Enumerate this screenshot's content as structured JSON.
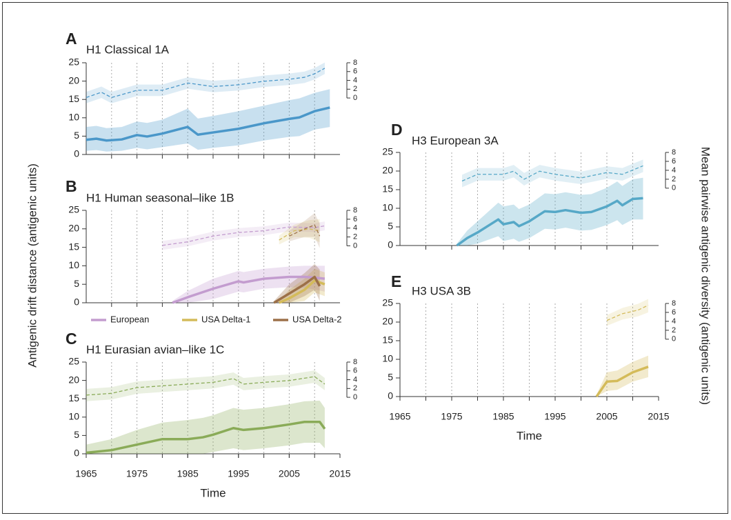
{
  "y_label": "Antigenic drift distance (antigenic units)",
  "y2_label": "Mean pairwise antigenic diversity (antigenic units)",
  "chart_data": [
    {
      "type": "line",
      "panel": "A",
      "title": "H1 Classical 1A",
      "xlim": [
        1965,
        2015
      ],
      "xgrid": [
        1970,
        1975,
        1980,
        1985,
        1990,
        1995,
        2000,
        2005,
        2010
      ],
      "ylim": [
        0,
        25
      ],
      "yticks": [
        0,
        5,
        10,
        15,
        20,
        25
      ],
      "y2lim": [
        0,
        8
      ],
      "y2ticks": [
        0,
        2,
        4,
        6,
        8
      ],
      "series": [
        {
          "color": "#4a97c9",
          "x": [
            1965,
            1967,
            1969,
            1972,
            1975,
            1977,
            1980,
            1985,
            1987,
            1990,
            1995,
            2000,
            2005,
            2007,
            2010,
            2013
          ],
          "values": [
            4,
            4.3,
            3.8,
            4.1,
            5.3,
            4.9,
            5.7,
            7.5,
            5.4,
            6,
            7,
            8.5,
            9.7,
            10.1,
            11.8,
            12.8
          ],
          "lower": [
            1,
            1.2,
            0.8,
            1,
            1.8,
            1.4,
            2,
            3,
            1.3,
            1.8,
            2.5,
            3.8,
            4.8,
            5,
            6.8,
            7.5
          ],
          "upper": [
            7.5,
            7.8,
            7.2,
            7.5,
            9,
            8.6,
            9.5,
            12.5,
            9.8,
            10.5,
            11.8,
            13.3,
            14.8,
            15.3,
            16.8,
            17.8
          ]
        },
        {
          "color": "#4a97c9",
          "axis": "y2",
          "x": [
            1965,
            1968,
            1970,
            1975,
            1980,
            1985,
            1990,
            1995,
            2000,
            2005,
            2008,
            2010,
            2012
          ],
          "values": [
            0.1,
            1.3,
            0.1,
            1.75,
            1.75,
            3.4,
            2.6,
            3,
            3.8,
            4.25,
            4.7,
            5.5,
            6.75
          ],
          "lower": [
            -1.2,
            0,
            -1.2,
            0.45,
            0.45,
            2.1,
            1.3,
            1.7,
            2.5,
            2.95,
            3.4,
            4.2,
            5.45
          ],
          "upper": [
            1.4,
            2.6,
            1.4,
            3.05,
            3.05,
            4.7,
            3.9,
            4.3,
            5.1,
            5.55,
            6,
            6.8,
            8.05
          ]
        }
      ]
    },
    {
      "type": "line",
      "panel": "B",
      "title": "H1 Human seasonal–like 1B",
      "xlim": [
        1965,
        2015
      ],
      "xgrid": [
        1970,
        1975,
        1980,
        1985,
        1990,
        1995,
        2000,
        2005,
        2010
      ],
      "ylim": [
        0,
        25
      ],
      "yticks": [
        0,
        5,
        10,
        15,
        20,
        25
      ],
      "y2lim": [
        0,
        8
      ],
      "y2ticks": [
        0,
        2,
        4,
        6,
        8
      ],
      "series": [
        {
          "name": "European",
          "color": "#c39ccf",
          "x": [
            1982,
            1985,
            1990,
            1995,
            1996,
            2000,
            2005,
            2008,
            2010,
            2012
          ],
          "values": [
            0,
            1.5,
            3.8,
            5.8,
            5.5,
            6.5,
            7,
            7,
            6.8,
            6.5
          ],
          "lower": [
            0,
            0,
            1,
            3,
            2.8,
            3.8,
            4.2,
            4,
            3.6,
            3
          ],
          "upper": [
            0.5,
            3.2,
            6.5,
            8.6,
            8.3,
            9.2,
            9.8,
            10,
            10,
            10
          ]
        },
        {
          "name": "USA Delta-1",
          "color": "#d4bb5a",
          "x": [
            2003,
            2005,
            2008,
            2010,
            2012
          ],
          "values": [
            0,
            1.2,
            3.5,
            6,
            5
          ],
          "lower": [
            0,
            0,
            0.5,
            2.8,
            1.8
          ],
          "upper": [
            0.5,
            3.5,
            6.5,
            9.2,
            8.2
          ]
        },
        {
          "name": "USA Delta-2",
          "color": "#9c7048",
          "x": [
            2002,
            2005,
            2008,
            2010,
            2011
          ],
          "values": [
            0,
            2.5,
            5,
            7,
            4.5
          ],
          "lower": [
            0,
            0,
            1.8,
            3.5,
            0.5
          ],
          "upper": [
            0.5,
            5,
            8,
            10.5,
            9
          ]
        },
        {
          "color": "#c39ccf",
          "axis": "y2",
          "x": [
            1980,
            1985,
            1990,
            1995,
            2000,
            2005,
            2010,
            2012
          ],
          "values": [
            0.1,
            0.9,
            2.2,
            3,
            3.4,
            4.25,
            4.1,
            4.5
          ],
          "lower": [
            -0.9,
            -0.1,
            1.2,
            2,
            2.4,
            3.25,
            3.1,
            3.5
          ],
          "upper": [
            1.1,
            1.9,
            3.2,
            4,
            4.4,
            5.25,
            5.1,
            5.5
          ]
        },
        {
          "color": "#d4bb5a",
          "axis": "y2",
          "x": [
            2003,
            2006,
            2009,
            2011
          ],
          "values": [
            1.3,
            3.4,
            3.8,
            3.4
          ],
          "lower": [
            0.3,
            2,
            1.8,
            0.8
          ],
          "upper": [
            2.3,
            4.8,
            5.8,
            6
          ]
        },
        {
          "color": "#9c7048",
          "axis": "y2",
          "x": [
            2005,
            2008,
            2010,
            2011
          ],
          "values": [
            2.2,
            3.8,
            4.7,
            2.2
          ],
          "lower": [
            1,
            2,
            2,
            -0.5
          ],
          "upper": [
            3.4,
            5.6,
            7.4,
            5
          ]
        }
      ]
    },
    {
      "type": "line",
      "panel": "C",
      "title": "H1 Eurasian avian–like 1C",
      "xlabel": "Time",
      "xlim": [
        1965,
        2015
      ],
      "xgrid": [
        1970,
        1975,
        1980,
        1985,
        1990,
        1995,
        2000,
        2005,
        2010
      ],
      "xticks": [
        1965,
        1975,
        1985,
        1995,
        2005,
        2015
      ],
      "ylim": [
        0,
        25
      ],
      "yticks": [
        0,
        5,
        10,
        15,
        20,
        25
      ],
      "y2lim": [
        0,
        8
      ],
      "y2ticks": [
        0,
        2,
        4,
        6,
        8
      ],
      "series": [
        {
          "color": "#8aab58",
          "x": [
            1965,
            1970,
            1975,
            1980,
            1985,
            1988,
            1990,
            1994,
            1996,
            2000,
            2005,
            2008,
            2011,
            2012
          ],
          "values": [
            0.3,
            1,
            2.5,
            4,
            4,
            4.5,
            5.2,
            7,
            6.5,
            7,
            8,
            8.7,
            8.7,
            6.8
          ],
          "lower": [
            0,
            0,
            0,
            0,
            0,
            0,
            0.5,
            1.5,
            1,
            1.5,
            2.3,
            3,
            3,
            1.5
          ],
          "upper": [
            2.5,
            4,
            6.5,
            8.5,
            9.2,
            9.8,
            10.5,
            12.5,
            12,
            12.5,
            13.5,
            14.3,
            14.5,
            12.5
          ]
        },
        {
          "color": "#8aab58",
          "axis": "y2",
          "x": [
            1965,
            1970,
            1975,
            1980,
            1985,
            1990,
            1994,
            1996,
            2000,
            2005,
            2010,
            2012
          ],
          "values": [
            0.5,
            0.9,
            2.2,
            2.6,
            3,
            3.4,
            4.25,
            3,
            3.4,
            3.8,
            4.7,
            3
          ],
          "lower": [
            -0.9,
            -0.5,
            0.8,
            1.2,
            1.6,
            2,
            2.85,
            1.6,
            2,
            2.4,
            3.3,
            1.6
          ],
          "upper": [
            1.9,
            2.3,
            3.6,
            4,
            4.4,
            4.8,
            5.65,
            4.4,
            4.8,
            5.2,
            6.1,
            4.4
          ]
        }
      ]
    },
    {
      "type": "line",
      "panel": "D",
      "title": "H3 European 3A",
      "xlim": [
        1965,
        2015
      ],
      "xgrid": [
        1970,
        1975,
        1980,
        1985,
        1990,
        1995,
        2000,
        2005,
        2010
      ],
      "ylim": [
        0,
        25
      ],
      "yticks": [
        0,
        5,
        10,
        15,
        20,
        25
      ],
      "y2lim": [
        0,
        8
      ],
      "y2ticks": [
        0,
        2,
        4,
        6,
        8
      ],
      "series": [
        {
          "color": "#56a8c7",
          "x": [
            1976,
            1978,
            1980,
            1984,
            1985,
            1987,
            1988,
            1990,
            1993,
            1995,
            1997,
            2000,
            2002,
            2005,
            2007,
            2008,
            2010,
            2012
          ],
          "values": [
            0,
            2,
            3.5,
            7,
            5.7,
            6.3,
            5.2,
            6.5,
            9.2,
            9,
            9.5,
            8.8,
            9,
            10.5,
            12,
            10.8,
            12.5,
            12.7
          ],
          "lower": [
            0,
            0,
            0.5,
            2.5,
            1.2,
            1.8,
            1,
            2,
            4.5,
            4.3,
            4.8,
            4,
            4.2,
            5.5,
            6.8,
            5.5,
            7,
            7
          ],
          "upper": [
            0.5,
            4,
            6.5,
            11.5,
            10.5,
            11,
            9.8,
            11,
            14,
            13.8,
            14.3,
            13.6,
            13.8,
            15.5,
            17.2,
            16,
            17.8,
            18.2
          ]
        },
        {
          "color": "#56a8c7",
          "axis": "y2",
          "x": [
            1977,
            1980,
            1985,
            1987,
            1989,
            1992,
            1995,
            2000,
            2005,
            2008,
            2012
          ],
          "values": [
            1.6,
            3.1,
            3.1,
            3.8,
            2,
            3.8,
            3.1,
            2.3,
            3.5,
            3.1,
            5
          ],
          "lower": [
            0.2,
            1.7,
            1.7,
            2.4,
            0.6,
            2.4,
            1.7,
            0.9,
            2.1,
            1.7,
            3.6
          ],
          "upper": [
            3,
            4.5,
            4.5,
            5.2,
            3.4,
            5.2,
            4.5,
            3.7,
            4.9,
            4.5,
            6.4
          ]
        }
      ]
    },
    {
      "type": "line",
      "panel": "E",
      "title": "H3 USA 3B",
      "xlabel": "Time",
      "xlim": [
        1965,
        2015
      ],
      "xgrid": [
        1970,
        1975,
        1980,
        1985,
        1990,
        1995,
        2000,
        2005,
        2010
      ],
      "xticks": [
        1965,
        1975,
        1985,
        1995,
        2005,
        2015
      ],
      "ylim": [
        0,
        25
      ],
      "yticks": [
        0,
        5,
        10,
        15,
        20,
        25
      ],
      "y2lim": [
        0,
        8
      ],
      "y2ticks": [
        0,
        2,
        4,
        6,
        8
      ],
      "series": [
        {
          "color": "#d4bb5a",
          "x": [
            2003,
            2005,
            2007,
            2010,
            2013
          ],
          "values": [
            0,
            4,
            4.2,
            6.5,
            8
          ],
          "lower": [
            0,
            1.5,
            1.8,
            4,
            5.2
          ],
          "upper": [
            0.5,
            6.5,
            7,
            9.3,
            11
          ]
        },
        {
          "color": "#d4bb5a",
          "axis": "y2",
          "x": [
            2005,
            2008,
            2011,
            2013
          ],
          "values": [
            4.2,
            5.7,
            6.5,
            7.6
          ],
          "lower": [
            3,
            4.4,
            5.1,
            6
          ],
          "upper": [
            5.4,
            7,
            7.9,
            9
          ]
        }
      ]
    }
  ]
}
